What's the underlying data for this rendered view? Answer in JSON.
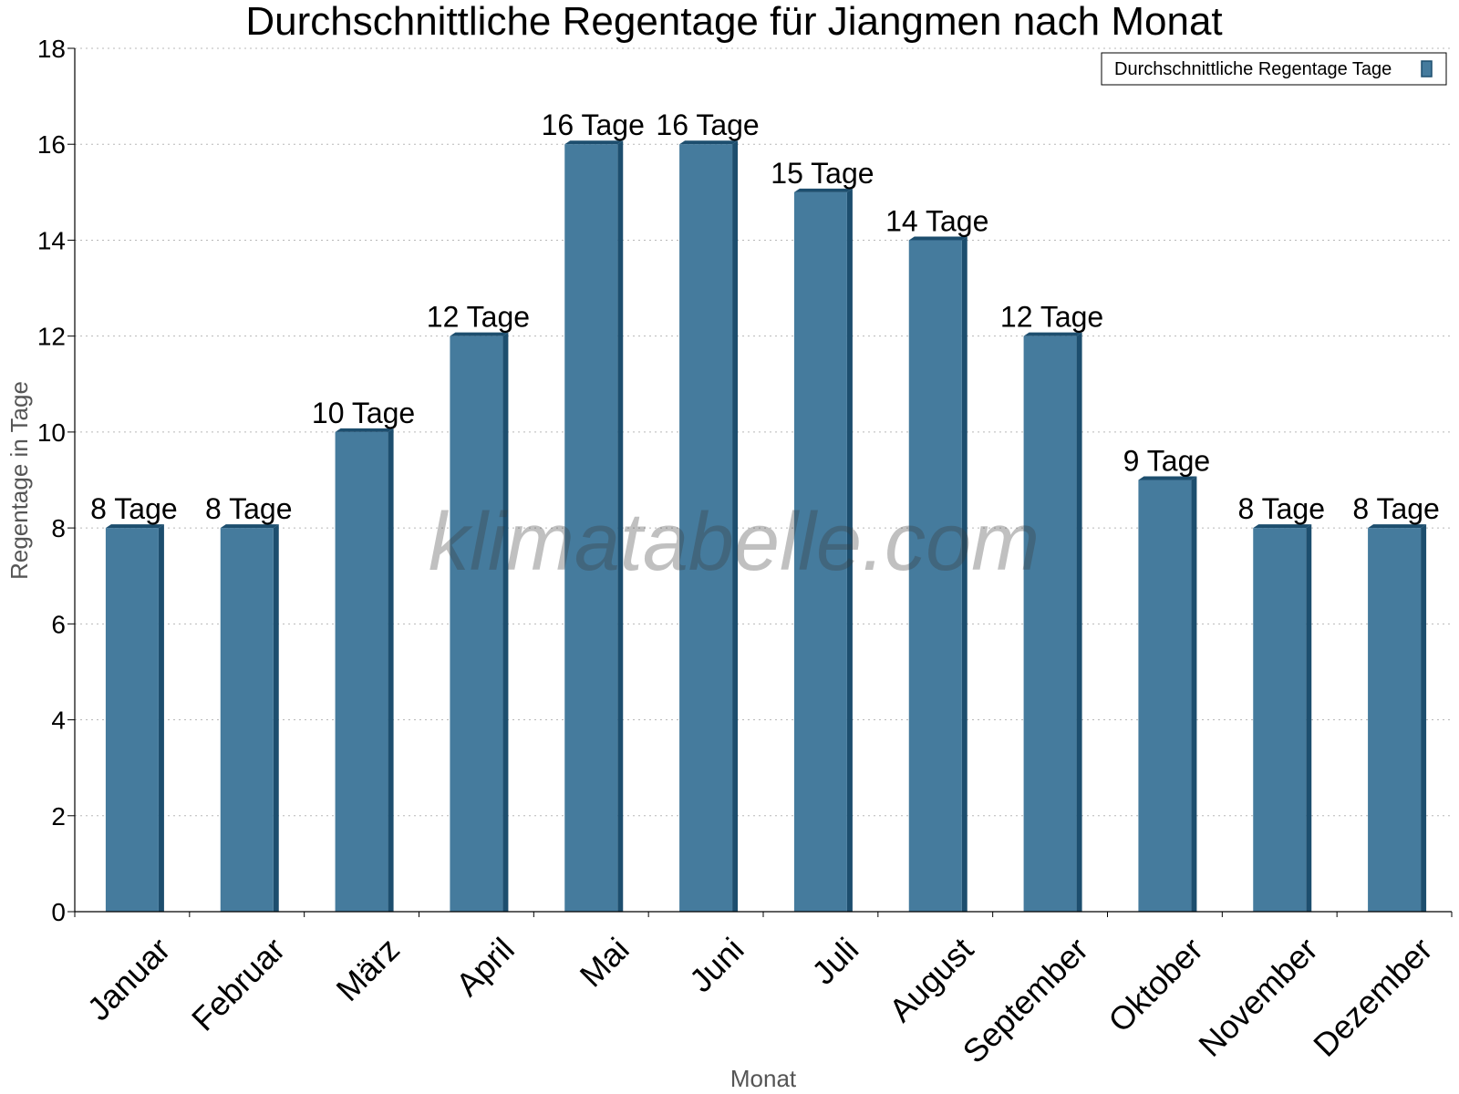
{
  "chart_data": {
    "type": "bar",
    "title": "Durchschnittliche Regentage für Jiangmen nach Monat",
    "xlabel": "Monat",
    "ylabel": "Regentage in Tage",
    "ylim": [
      0,
      18
    ],
    "yticks": [
      0,
      2,
      4,
      6,
      8,
      10,
      12,
      14,
      16,
      18
    ],
    "grid": true,
    "legend_position": "top-right",
    "categories": [
      "Januar",
      "Februar",
      "März",
      "April",
      "Mai",
      "Juni",
      "Juli",
      "August",
      "September",
      "Oktober",
      "November",
      "Dezember"
    ],
    "series": [
      {
        "name": "Durchschnittliche Regentage Tage",
        "values": [
          8,
          8,
          10,
          12,
          16,
          16,
          15,
          14,
          12,
          9,
          8,
          8
        ],
        "data_labels": [
          "8 Tage",
          "8 Tage",
          "10 Tage",
          "12 Tage",
          "16 Tage",
          "16 Tage",
          "15 Tage",
          "14 Tage",
          "12 Tage",
          "9 Tage",
          "8 Tage",
          "8 Tage"
        ],
        "color": "#457b9d",
        "side_color": "#1d4e6e"
      }
    ],
    "watermark": "klimatabelle.com"
  }
}
